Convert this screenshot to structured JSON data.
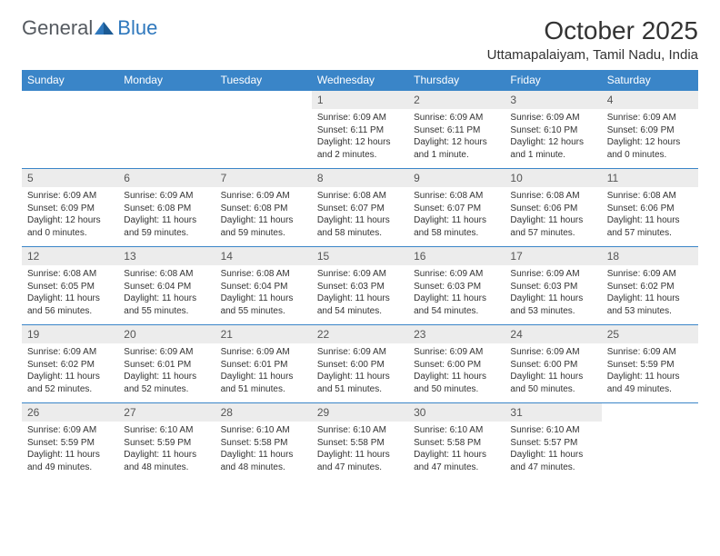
{
  "brand": {
    "part1": "General",
    "part2": "Blue"
  },
  "title": "October 2025",
  "location": "Uttamapalaiyam, Tamil Nadu, India",
  "colors": {
    "header_bg": "#3a85c8",
    "header_text": "#ffffff",
    "daynum_bg": "#ececec",
    "rule": "#3a85c8",
    "brand_blue": "#2f78bd",
    "brand_gray": "#555a60"
  },
  "days_of_week": [
    "Sunday",
    "Monday",
    "Tuesday",
    "Wednesday",
    "Thursday",
    "Friday",
    "Saturday"
  ],
  "weeks": [
    [
      null,
      null,
      null,
      {
        "n": "1",
        "sr": "Sunrise: 6:09 AM",
        "ss": "Sunset: 6:11 PM",
        "dl": "Daylight: 12 hours and 2 minutes."
      },
      {
        "n": "2",
        "sr": "Sunrise: 6:09 AM",
        "ss": "Sunset: 6:11 PM",
        "dl": "Daylight: 12 hours and 1 minute."
      },
      {
        "n": "3",
        "sr": "Sunrise: 6:09 AM",
        "ss": "Sunset: 6:10 PM",
        "dl": "Daylight: 12 hours and 1 minute."
      },
      {
        "n": "4",
        "sr": "Sunrise: 6:09 AM",
        "ss": "Sunset: 6:09 PM",
        "dl": "Daylight: 12 hours and 0 minutes."
      }
    ],
    [
      {
        "n": "5",
        "sr": "Sunrise: 6:09 AM",
        "ss": "Sunset: 6:09 PM",
        "dl": "Daylight: 12 hours and 0 minutes."
      },
      {
        "n": "6",
        "sr": "Sunrise: 6:09 AM",
        "ss": "Sunset: 6:08 PM",
        "dl": "Daylight: 11 hours and 59 minutes."
      },
      {
        "n": "7",
        "sr": "Sunrise: 6:09 AM",
        "ss": "Sunset: 6:08 PM",
        "dl": "Daylight: 11 hours and 59 minutes."
      },
      {
        "n": "8",
        "sr": "Sunrise: 6:08 AM",
        "ss": "Sunset: 6:07 PM",
        "dl": "Daylight: 11 hours and 58 minutes."
      },
      {
        "n": "9",
        "sr": "Sunrise: 6:08 AM",
        "ss": "Sunset: 6:07 PM",
        "dl": "Daylight: 11 hours and 58 minutes."
      },
      {
        "n": "10",
        "sr": "Sunrise: 6:08 AM",
        "ss": "Sunset: 6:06 PM",
        "dl": "Daylight: 11 hours and 57 minutes."
      },
      {
        "n": "11",
        "sr": "Sunrise: 6:08 AM",
        "ss": "Sunset: 6:06 PM",
        "dl": "Daylight: 11 hours and 57 minutes."
      }
    ],
    [
      {
        "n": "12",
        "sr": "Sunrise: 6:08 AM",
        "ss": "Sunset: 6:05 PM",
        "dl": "Daylight: 11 hours and 56 minutes."
      },
      {
        "n": "13",
        "sr": "Sunrise: 6:08 AM",
        "ss": "Sunset: 6:04 PM",
        "dl": "Daylight: 11 hours and 55 minutes."
      },
      {
        "n": "14",
        "sr": "Sunrise: 6:08 AM",
        "ss": "Sunset: 6:04 PM",
        "dl": "Daylight: 11 hours and 55 minutes."
      },
      {
        "n": "15",
        "sr": "Sunrise: 6:09 AM",
        "ss": "Sunset: 6:03 PM",
        "dl": "Daylight: 11 hours and 54 minutes."
      },
      {
        "n": "16",
        "sr": "Sunrise: 6:09 AM",
        "ss": "Sunset: 6:03 PM",
        "dl": "Daylight: 11 hours and 54 minutes."
      },
      {
        "n": "17",
        "sr": "Sunrise: 6:09 AM",
        "ss": "Sunset: 6:03 PM",
        "dl": "Daylight: 11 hours and 53 minutes."
      },
      {
        "n": "18",
        "sr": "Sunrise: 6:09 AM",
        "ss": "Sunset: 6:02 PM",
        "dl": "Daylight: 11 hours and 53 minutes."
      }
    ],
    [
      {
        "n": "19",
        "sr": "Sunrise: 6:09 AM",
        "ss": "Sunset: 6:02 PM",
        "dl": "Daylight: 11 hours and 52 minutes."
      },
      {
        "n": "20",
        "sr": "Sunrise: 6:09 AM",
        "ss": "Sunset: 6:01 PM",
        "dl": "Daylight: 11 hours and 52 minutes."
      },
      {
        "n": "21",
        "sr": "Sunrise: 6:09 AM",
        "ss": "Sunset: 6:01 PM",
        "dl": "Daylight: 11 hours and 51 minutes."
      },
      {
        "n": "22",
        "sr": "Sunrise: 6:09 AM",
        "ss": "Sunset: 6:00 PM",
        "dl": "Daylight: 11 hours and 51 minutes."
      },
      {
        "n": "23",
        "sr": "Sunrise: 6:09 AM",
        "ss": "Sunset: 6:00 PM",
        "dl": "Daylight: 11 hours and 50 minutes."
      },
      {
        "n": "24",
        "sr": "Sunrise: 6:09 AM",
        "ss": "Sunset: 6:00 PM",
        "dl": "Daylight: 11 hours and 50 minutes."
      },
      {
        "n": "25",
        "sr": "Sunrise: 6:09 AM",
        "ss": "Sunset: 5:59 PM",
        "dl": "Daylight: 11 hours and 49 minutes."
      }
    ],
    [
      {
        "n": "26",
        "sr": "Sunrise: 6:09 AM",
        "ss": "Sunset: 5:59 PM",
        "dl": "Daylight: 11 hours and 49 minutes."
      },
      {
        "n": "27",
        "sr": "Sunrise: 6:10 AM",
        "ss": "Sunset: 5:59 PM",
        "dl": "Daylight: 11 hours and 48 minutes."
      },
      {
        "n": "28",
        "sr": "Sunrise: 6:10 AM",
        "ss": "Sunset: 5:58 PM",
        "dl": "Daylight: 11 hours and 48 minutes."
      },
      {
        "n": "29",
        "sr": "Sunrise: 6:10 AM",
        "ss": "Sunset: 5:58 PM",
        "dl": "Daylight: 11 hours and 47 minutes."
      },
      {
        "n": "30",
        "sr": "Sunrise: 6:10 AM",
        "ss": "Sunset: 5:58 PM",
        "dl": "Daylight: 11 hours and 47 minutes."
      },
      {
        "n": "31",
        "sr": "Sunrise: 6:10 AM",
        "ss": "Sunset: 5:57 PM",
        "dl": "Daylight: 11 hours and 47 minutes."
      },
      null
    ]
  ]
}
